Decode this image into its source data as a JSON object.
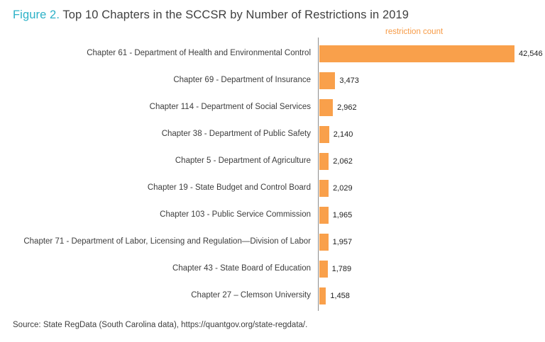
{
  "title": {
    "prefix": "Figure 2.",
    "rest": " Top 10 Chapters in the SCCSR by Number of Restrictions in 2019"
  },
  "legend_label": "restriction count",
  "source": "Source: State RegData (South Carolina data), https://quantgov.org/state-regdata/.",
  "colors": {
    "bar": "#F9A04B",
    "legend_text": "#F79B46",
    "title_prefix": "#2CB1C7",
    "axis": "#8C8C8C"
  },
  "chart_data": {
    "type": "bar",
    "orientation": "horizontal",
    "title": "Top 10 Chapters in the SCCSR by Number of Restrictions in 2019",
    "xlabel": "restriction count",
    "legend_position": "top",
    "grid": false,
    "xlim": [
      0,
      45000
    ],
    "categories": [
      "Chapter 61 - Department of Health and Environmental Control",
      "Chapter 69 - Department of Insurance",
      "Chapter 114 - Department of Social Services",
      "Chapter 38 - Department of Public Safety",
      "Chapter 5 - Department of Agriculture",
      "Chapter 19 - State Budget and Control Board",
      "Chapter 103 - Public Service Commission",
      "Chapter 71 - Department of Labor, Licensing and Regulation—Division of Labor",
      "Chapter 43 - State Board of Education",
      "Chapter 27 – Clemson University"
    ],
    "values": [
      42546,
      3473,
      2962,
      2140,
      2062,
      2029,
      1965,
      1957,
      1789,
      1458
    ],
    "value_labels": [
      "42,546",
      "3,473",
      "2,962",
      "2,140",
      "2,062",
      "2,029",
      "1,965",
      "1,957",
      "1,789",
      "1,458"
    ]
  }
}
